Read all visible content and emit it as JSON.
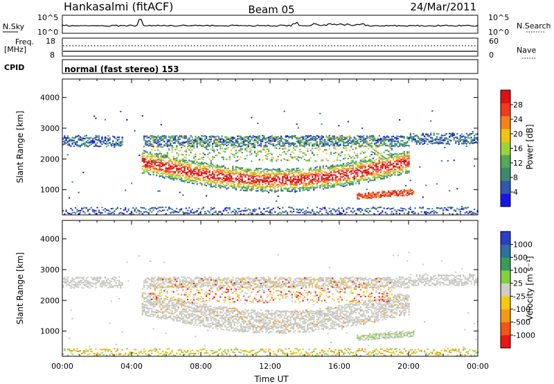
{
  "header": {
    "station": "Hankasalmi (fitACF)",
    "beam": "Beam 05",
    "date": "24/Mar/2011"
  },
  "panels": {
    "noise": {
      "left_label": "N.Sky",
      "right_label": "N.Search",
      "left_ticks": [
        "10^5",
        "10^0"
      ],
      "right_ticks": [
        "10^5",
        "10^0"
      ]
    },
    "freq": {
      "left_label_1": "Freq.",
      "left_label_2": "[MHz]",
      "right_label": "Nave",
      "left_ticks": [
        "18",
        "8"
      ],
      "right_ticks": [
        "60",
        "0"
      ]
    },
    "cpid": {
      "left_label": "CPID",
      "text": "normal (fast stereo) 153"
    }
  },
  "chart_data": [
    {
      "type": "heatmap",
      "name": "power",
      "ylabel": "Slant Range [km]",
      "xlabel": "",
      "xlim": [
        "00:00",
        "24:00"
      ],
      "ylim": [
        180,
        4600
      ],
      "yticks": [
        "1000",
        "2000",
        "3000",
        "4000"
      ],
      "colorbar": {
        "label": "Power [dB]",
        "range": [
          0,
          32
        ],
        "ticks": [
          "4",
          "8",
          "12",
          "16",
          "20",
          "24",
          "28"
        ],
        "colors": [
          "#1515ea",
          "#2f58b0",
          "#3d8770",
          "#52a955",
          "#9ed23b",
          "#f2c210",
          "#f48419",
          "#f23a1c",
          "#e01010"
        ]
      }
    },
    {
      "type": "heatmap",
      "name": "velocity",
      "ylabel": "Slant Range [km]",
      "xlabel": "Time UT",
      "xlim": [
        "00:00",
        "24:00"
      ],
      "ylim": [
        180,
        4600
      ],
      "xticks": [
        "00:00",
        "04:00",
        "08:00",
        "12:00",
        "16:00",
        "20:00",
        "00:00"
      ],
      "yticks": [
        "1000",
        "2000",
        "3000",
        "4000"
      ],
      "colorbar": {
        "label": "Velocity [m s⁻¹]",
        "ticks": [
          "1000",
          "500",
          "100",
          "25",
          "-25",
          "-100",
          "-500",
          "-1000"
        ],
        "colors": [
          "#2a3fc8",
          "#306f9e",
          "#3a9a5a",
          "#7fd13f",
          "#cfcfc7",
          "#f6c90f",
          "#f39a14",
          "#f25616",
          "#ee1515"
        ]
      }
    }
  ],
  "icons": {
    "search_line": "dotted-line",
    "nave_line": "dotted-line"
  }
}
